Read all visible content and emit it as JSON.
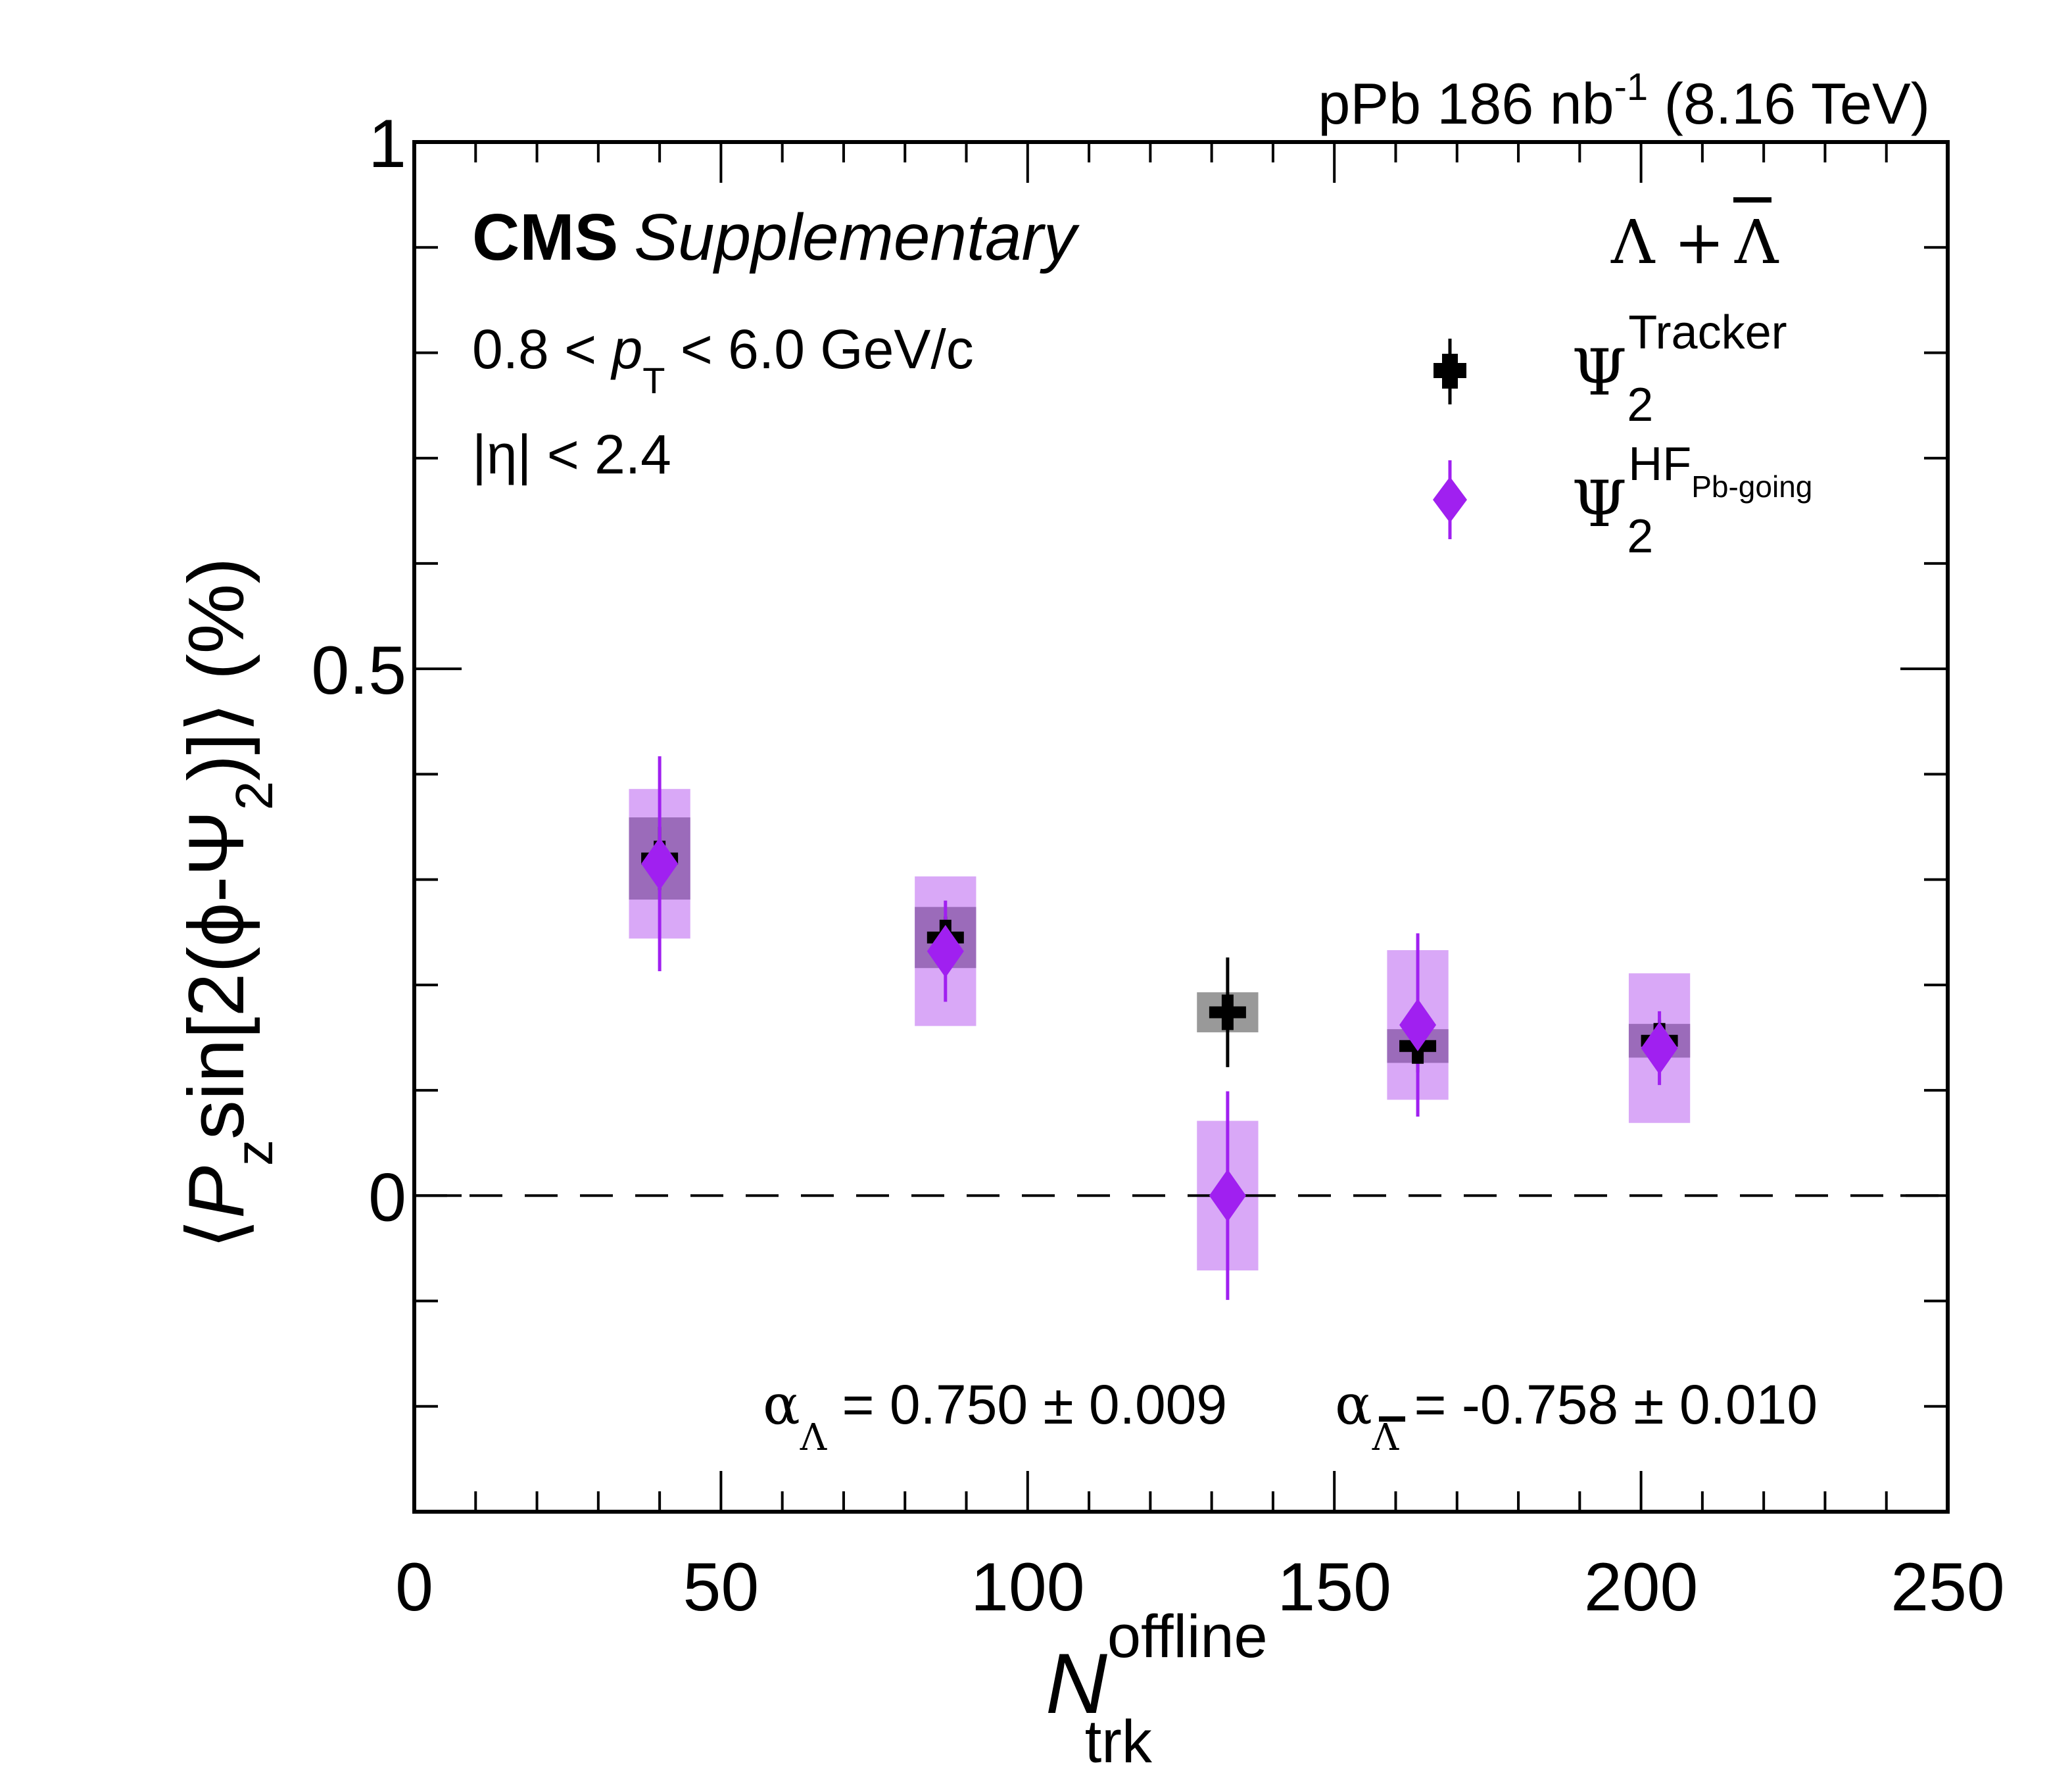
{
  "chart_data": {
    "type": "scatter",
    "title": "",
    "top_right_label": {
      "text": "pPb 186 nb",
      "sup": "-1",
      "tail": " (8.16 TeV)"
    },
    "experiment_label": {
      "bold": "CMS",
      "italic": "Supplementary"
    },
    "particle_label": {
      "main": "Λ + ",
      "bar": "Λ"
    },
    "kinematics": [
      {
        "pre": "0.8 < ",
        "var": "p",
        "sub": "T",
        "post": " < 6.0 GeV/c"
      },
      {
        "pre": "|η| < 2.4"
      }
    ],
    "alpha_annotation": {
      "lambda": {
        "symbol": "α",
        "sub": "Λ",
        "text": " = 0.750 ± 0.009"
      },
      "antilambda": {
        "symbol": "α",
        "sub": "Λ",
        "text": " = -0.758 ± 0.010"
      }
    },
    "xlabel": {
      "main": "N",
      "sup": "offline",
      "sub": "trk"
    },
    "ylabel": "⟨P_z sin[2(ϕ-Ψ_2)]⟩ (%)",
    "ylabel_parts": {
      "open": "⟨",
      "P": "P",
      "z": "z",
      "mid": "sin[2(ϕ-Ψ",
      "two": "2",
      "close": ")]⟩ (%)"
    },
    "xlim": [
      0,
      250
    ],
    "ylim": [
      -0.3,
      1.0
    ],
    "x_major_ticks": [
      0,
      50,
      100,
      150,
      200,
      250
    ],
    "x_tick_labels": [
      "0",
      "50",
      "100",
      "150",
      "200",
      "250"
    ],
    "x_minor_step": 10,
    "y_major_ticks": [
      0,
      0.5,
      1
    ],
    "y_tick_labels": [
      "0",
      "0.5",
      "1"
    ],
    "y_minor_step": 0.1,
    "grid": false,
    "reference_line": {
      "y": 0,
      "style": "dashed"
    },
    "legend_position": "top-right",
    "series": [
      {
        "name": "Ψ2 Tracker",
        "legend_main": "Ψ",
        "legend_sub": "2",
        "legend_sup": "Tracker",
        "marker": "cross",
        "color": "#000000",
        "syst_color": "#999999",
        "x": [
          40,
          86.6,
          132.6,
          163.6,
          203
        ],
        "y": [
          0.32,
          0.245,
          0.174,
          0.142,
          0.147
        ],
        "stat_err": [
          0.03,
          0.02,
          0.052,
          0.025,
          0.02
        ],
        "syst_err": [
          0.039,
          0.029,
          0.019,
          0.016,
          0.016
        ],
        "syst_half_width": 5
      },
      {
        "name": "Ψ2 HF Pb-going",
        "legend_main": "Ψ",
        "legend_sub": "2",
        "legend_sup": "HF",
        "legend_sup_sub": "Pb-going",
        "marker": "diamond",
        "color": "#A020F0",
        "syst_color": "#D9A8F7",
        "overlap_color": "#9B6BBA",
        "x": [
          40,
          86.6,
          132.6,
          163.6,
          203
        ],
        "y": [
          0.315,
          0.232,
          0.0,
          0.162,
          0.14
        ],
        "stat_err": [
          0.102,
          0.048,
          0.099,
          0.087,
          0.035
        ],
        "syst_err": [
          0.071,
          0.071,
          0.071,
          0.071,
          0.071
        ],
        "syst_half_width": 5
      }
    ]
  }
}
